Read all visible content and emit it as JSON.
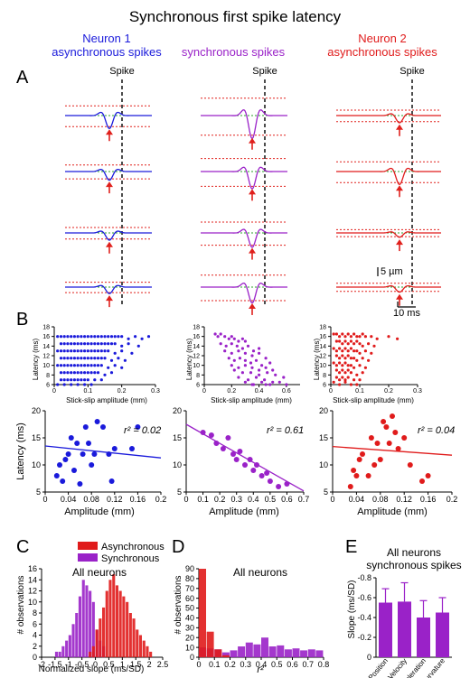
{
  "title": "Synchronous first spike latency",
  "colors": {
    "neuron1": "#1a1adb",
    "sync": "#9a22c8",
    "neuron2": "#e01b1b",
    "redline": "#e0201c",
    "greenline": "#2aa02a",
    "black": "#000000"
  },
  "panel_a": {
    "letter": "A",
    "spike_label": "Spike",
    "scale_amp": "5 µm",
    "scale_time": "10 ms",
    "columns": [
      {
        "title_line1": "Neuron 1",
        "title_line2": "asynchronous spikes",
        "color_key": "neuron1",
        "trace_amps": [
          0.9,
          0.6,
          0.5,
          0.45
        ]
      },
      {
        "title_line1": "synchronous spikes",
        "title_line2": "",
        "color_key": "sync",
        "trace_amps": [
          1.6,
          1.2,
          1.0,
          1.1
        ]
      },
      {
        "title_line1": "Neuron 2",
        "title_line2": "asynchronous spikes",
        "color_key": "neuron2",
        "trace_amps": [
          0.5,
          0.9,
          0.3,
          0.35
        ]
      }
    ]
  },
  "panel_b": {
    "letter": "B",
    "raster_xlabel": "Stick-slip amplitude (mm)",
    "raster_ylabel": "Latency (ms)",
    "scatter_xlabel": "Amplitude (mm)",
    "scatter_ylabel": "Latency (ms)"
  },
  "chart_data": [
    {
      "id": "raster-neuron1",
      "type": "scatter",
      "series_color": "neuron1",
      "xlim": [
        0,
        0.3
      ],
      "ylim": [
        6,
        18
      ],
      "xticks": [
        "0",
        "0.1",
        "0.2",
        "0.3"
      ],
      "xtick_values": [
        0,
        0.1,
        0.2,
        0.3
      ],
      "yticks": [
        "6",
        "8",
        "10",
        "12",
        "14",
        "16",
        "18"
      ],
      "ytick_values": [
        6,
        8,
        10,
        12,
        14,
        16,
        18
      ],
      "xlabel": "Stick-slip amplitude (mm)",
      "ylabel": "Latency (ms)",
      "x": [
        0.01,
        0.02,
        0.03,
        0.04,
        0.05,
        0.06,
        0.07,
        0.08,
        0.09,
        0.1,
        0.11,
        0.12,
        0.13,
        0.14,
        0.15,
        0.16,
        0.17,
        0.18,
        0.19,
        0.2,
        0.22,
        0.24,
        0.26,
        0.28,
        0.02,
        0.03,
        0.04,
        0.05,
        0.06,
        0.07,
        0.08,
        0.09,
        0.1,
        0.11,
        0.12,
        0.13,
        0.14,
        0.15,
        0.16,
        0.17,
        0.18,
        0.2,
        0.22,
        0.25,
        0.01,
        0.02,
        0.03,
        0.04,
        0.05,
        0.06,
        0.07,
        0.08,
        0.09,
        0.1,
        0.11,
        0.12,
        0.13,
        0.14,
        0.15,
        0.16,
        0.18,
        0.2,
        0.23,
        0.02,
        0.03,
        0.04,
        0.05,
        0.06,
        0.07,
        0.08,
        0.09,
        0.1,
        0.11,
        0.12,
        0.13,
        0.14,
        0.15,
        0.17,
        0.19,
        0.21,
        0.01,
        0.02,
        0.03,
        0.04,
        0.05,
        0.06,
        0.07,
        0.08,
        0.09,
        0.1,
        0.11,
        0.12,
        0.13,
        0.14,
        0.16,
        0.18,
        0.2,
        0.02,
        0.03,
        0.04,
        0.05,
        0.06,
        0.07,
        0.08,
        0.09,
        0.1,
        0.11,
        0.12,
        0.13,
        0.15,
        0.17,
        0.02,
        0.03,
        0.04,
        0.05,
        0.06,
        0.07,
        0.08,
        0.09,
        0.1,
        0.12,
        0.14,
        0.01,
        0.03,
        0.05,
        0.07,
        0.09,
        0.11
      ],
      "y": [
        16,
        16,
        16,
        16,
        16,
        16,
        16,
        16,
        16,
        16,
        16,
        16,
        16,
        16,
        16,
        16,
        16,
        16,
        16,
        16,
        15.5,
        16,
        15.5,
        16,
        14.5,
        14.5,
        14.5,
        14.5,
        14.5,
        14.5,
        14.5,
        14.5,
        14.5,
        14.5,
        14.5,
        14.5,
        14.5,
        14.5,
        14.5,
        14.5,
        14.5,
        14,
        14.5,
        14,
        13,
        13,
        13,
        13,
        13,
        13,
        13,
        13,
        13,
        13,
        13,
        13,
        13,
        13,
        13,
        13,
        12.5,
        13,
        12.5,
        11.5,
        11.5,
        11.5,
        11.5,
        11.5,
        11.5,
        11.5,
        11.5,
        11.5,
        11.5,
        11.5,
        11.5,
        11.5,
        11.5,
        11,
        11.5,
        11,
        10,
        10,
        10,
        10,
        10,
        10,
        10,
        10,
        10,
        10,
        10,
        10,
        10,
        10,
        9.5,
        10,
        9.5,
        8.5,
        8.5,
        8.5,
        8.5,
        8.5,
        8.5,
        8.5,
        8.5,
        8.5,
        8.5,
        8.5,
        8.5,
        8,
        8.5,
        7,
        7,
        7,
        7,
        7,
        7,
        7,
        7,
        7,
        7,
        7,
        6,
        6,
        6,
        6,
        6,
        6
      ]
    },
    {
      "id": "raster-sync",
      "type": "scatter",
      "series_color": "sync",
      "xlim": [
        0,
        0.7
      ],
      "ylim": [
        6,
        18
      ],
      "xticks": [
        "0",
        "0.2",
        "0.4",
        "0.6"
      ],
      "xtick_values": [
        0,
        0.2,
        0.4,
        0.6
      ],
      "yticks": [
        "6",
        "8",
        "10",
        "12",
        "14",
        "16",
        "18"
      ],
      "ytick_values": [
        6,
        8,
        10,
        12,
        14,
        16,
        18
      ],
      "xlabel": "Stick-slip amplitude (mm)",
      "ylabel": "Latency (ms)",
      "x": [
        0.08,
        0.1,
        0.12,
        0.15,
        0.18,
        0.2,
        0.22,
        0.25,
        0.28,
        0.3,
        0.12,
        0.16,
        0.2,
        0.24,
        0.28,
        0.32,
        0.36,
        0.4,
        0.15,
        0.2,
        0.25,
        0.3,
        0.35,
        0.4,
        0.45,
        0.18,
        0.22,
        0.26,
        0.3,
        0.34,
        0.38,
        0.42,
        0.48,
        0.2,
        0.25,
        0.3,
        0.35,
        0.4,
        0.45,
        0.5,
        0.22,
        0.28,
        0.34,
        0.4,
        0.46,
        0.52,
        0.58,
        0.25,
        0.32,
        0.38,
        0.44,
        0.5,
        0.3,
        0.36,
        0.42,
        0.48,
        0.55,
        0.35,
        0.45,
        0.6
      ],
      "y": [
        16.5,
        16,
        16.5,
        16,
        15.5,
        16,
        15.5,
        15,
        15.5,
        15,
        14.5,
        14,
        14.5,
        14,
        13.5,
        14,
        13,
        13.5,
        13,
        12.5,
        13,
        12.5,
        12,
        12.5,
        11.5,
        11.5,
        11,
        11.5,
        11,
        10.5,
        11,
        10,
        10.5,
        10,
        9.5,
        10,
        9.5,
        9,
        9.5,
        9,
        9,
        8.5,
        8.5,
        8,
        8.5,
        8,
        7.5,
        7.5,
        7,
        7.5,
        7,
        6.5,
        6.5,
        6,
        6.5,
        6,
        6.5,
        6,
        6,
        6
      ]
    },
    {
      "id": "raster-neuron2",
      "type": "scatter",
      "series_color": "neuron2",
      "xlim": [
        0,
        0.3
      ],
      "ylim": [
        6,
        18
      ],
      "xticks": [
        "0",
        "0.1",
        "0.2",
        "0.3"
      ],
      "xtick_values": [
        0,
        0.1,
        0.2,
        0.3
      ],
      "yticks": [
        "6",
        "8",
        "10",
        "12",
        "14",
        "16",
        "18"
      ],
      "ytick_values": [
        6,
        8,
        10,
        12,
        14,
        16,
        18
      ],
      "xlabel": "Stick-slip amplitude (mm)",
      "ylabel": "Latency (ms)",
      "x": [
        0.01,
        0.02,
        0.03,
        0.04,
        0.05,
        0.06,
        0.07,
        0.08,
        0.09,
        0.1,
        0.11,
        0.12,
        0.14,
        0.16,
        0.2,
        0.23,
        0.02,
        0.03,
        0.04,
        0.05,
        0.06,
        0.07,
        0.08,
        0.09,
        0.1,
        0.11,
        0.13,
        0.15,
        0.01,
        0.02,
        0.03,
        0.04,
        0.05,
        0.06,
        0.07,
        0.08,
        0.09,
        0.1,
        0.12,
        0.14,
        0.02,
        0.03,
        0.04,
        0.05,
        0.06,
        0.07,
        0.08,
        0.09,
        0.11,
        0.13,
        0.01,
        0.02,
        0.03,
        0.04,
        0.05,
        0.06,
        0.07,
        0.08,
        0.1,
        0.12,
        0.02,
        0.03,
        0.04,
        0.05,
        0.06,
        0.07,
        0.09,
        0.11,
        0.02,
        0.03,
        0.04,
        0.05,
        0.06,
        0.08,
        0.1,
        0.01,
        0.03,
        0.05,
        0.07,
        0.09
      ],
      "y": [
        16.5,
        16.5,
        16,
        16.5,
        16,
        16.5,
        16,
        16.5,
        16,
        16,
        16.5,
        16,
        16,
        15.5,
        16,
        15.5,
        15,
        15,
        14.5,
        15,
        14.5,
        15,
        14.5,
        15,
        14.5,
        14,
        14.5,
        14,
        13.5,
        13,
        13.5,
        13,
        13.5,
        13,
        13.5,
        13,
        13,
        12.5,
        13,
        12.5,
        12,
        11.5,
        12,
        11.5,
        12,
        11.5,
        11.5,
        11,
        11.5,
        11,
        10.5,
        10,
        10.5,
        10,
        10.5,
        10,
        10,
        9.5,
        10,
        9.5,
        9,
        8.5,
        9,
        8.5,
        9,
        8.5,
        8,
        8.5,
        7.5,
        7,
        7.5,
        7,
        7.5,
        7,
        7,
        6.5,
        6,
        6.5,
        6,
        6
      ]
    },
    {
      "id": "scatter-neuron1",
      "type": "scatter",
      "series_color": "neuron1",
      "xlim": [
        0,
        0.2
      ],
      "ylim": [
        5,
        20
      ],
      "xticks": [
        "0",
        "0.04",
        "0.08",
        "0.12",
        "0.16",
        "0.2"
      ],
      "xtick_values": [
        0,
        0.04,
        0.08,
        0.12,
        0.16,
        0.2
      ],
      "yticks": [
        "5",
        "10",
        "15",
        "20"
      ],
      "ytick_values": [
        5,
        10,
        15,
        20
      ],
      "xlabel": "Amplitude (mm)",
      "ylabel": "Latency (ms)",
      "annotation": "r² = 0.02",
      "fit": {
        "x": [
          0,
          0.2
        ],
        "y": [
          13.5,
          11.3
        ]
      },
      "x": [
        0.02,
        0.025,
        0.03,
        0.035,
        0.04,
        0.045,
        0.05,
        0.055,
        0.06,
        0.065,
        0.07,
        0.075,
        0.08,
        0.085,
        0.09,
        0.1,
        0.11,
        0.115,
        0.12,
        0.15,
        0.16
      ],
      "y": [
        8,
        10,
        7,
        11,
        12,
        15,
        9,
        14,
        6.5,
        12,
        17,
        14,
        10,
        12,
        18,
        17,
        12,
        7,
        13,
        13,
        17
      ]
    },
    {
      "id": "scatter-sync",
      "type": "scatter",
      "series_color": "sync",
      "xlim": [
        0,
        0.7
      ],
      "ylim": [
        5,
        20
      ],
      "xticks": [
        "0",
        "0.1",
        "0.2",
        "0.3",
        "0.4",
        "0.5",
        "0.6",
        "0.7"
      ],
      "xtick_values": [
        0,
        0.1,
        0.2,
        0.3,
        0.4,
        0.5,
        0.6,
        0.7
      ],
      "yticks": [
        "5",
        "10",
        "15",
        "20"
      ],
      "ytick_values": [
        5,
        10,
        15,
        20
      ],
      "xlabel": "Amplitude (mm)",
      "ylabel": "Latency (ms)",
      "annotation": "r² = 0.61",
      "fit": {
        "x": [
          0,
          0.7
        ],
        "y": [
          17.5,
          5.2
        ]
      },
      "x": [
        0.1,
        0.15,
        0.18,
        0.22,
        0.25,
        0.28,
        0.3,
        0.32,
        0.35,
        0.38,
        0.4,
        0.42,
        0.45,
        0.48,
        0.5,
        0.55,
        0.6
      ],
      "y": [
        16,
        15.5,
        14,
        13,
        15,
        12,
        11,
        12.5,
        10,
        11,
        9,
        10,
        8,
        8.5,
        7,
        6,
        6.5
      ]
    },
    {
      "id": "scatter-neuron2",
      "type": "scatter",
      "series_color": "neuron2",
      "xlim": [
        0,
        0.2
      ],
      "ylim": [
        5,
        20
      ],
      "xticks": [
        "0",
        "0.04",
        "0.08",
        "0.12",
        "0.16",
        "0.2"
      ],
      "xtick_values": [
        0,
        0.04,
        0.08,
        0.12,
        0.16,
        0.2
      ],
      "yticks": [
        "5",
        "10",
        "15",
        "20"
      ],
      "ytick_values": [
        5,
        10,
        15,
        20
      ],
      "xlabel": "Amplitude (mm)",
      "ylabel": "Latency (ms)",
      "annotation": "r² = 0.04",
      "fit": {
        "x": [
          0,
          0.2
        ],
        "y": [
          13.4,
          11.8
        ]
      },
      "x": [
        0.03,
        0.035,
        0.04,
        0.045,
        0.05,
        0.06,
        0.065,
        0.07,
        0.075,
        0.08,
        0.085,
        0.09,
        0.095,
        0.1,
        0.105,
        0.11,
        0.12,
        0.13,
        0.15,
        0.16
      ],
      "y": [
        6,
        9,
        8,
        11,
        12,
        8,
        15,
        10,
        14,
        11,
        18,
        17,
        14,
        19,
        16,
        13,
        15,
        10,
        7,
        8
      ]
    },
    {
      "id": "hist-slope",
      "type": "bar",
      "letter": "C",
      "panel_title": "All neurons",
      "xlim": [
        -2,
        2.5
      ],
      "ylim": [
        0,
        16
      ],
      "xticks": [
        "-2",
        "-1.5",
        "-1",
        "-0.5",
        "0",
        "0.5",
        "1",
        "1.5",
        "2",
        "2.5"
      ],
      "xtick_values": [
        -2,
        -1.5,
        -1,
        -0.5,
        0,
        0.5,
        1,
        1.5,
        2,
        2.5
      ],
      "yticks": [
        "0",
        "2",
        "4",
        "6",
        "8",
        "10",
        "12",
        "14",
        "16"
      ],
      "ytick_values": [
        0,
        2,
        4,
        6,
        8,
        10,
        12,
        14,
        16
      ],
      "xlabel": "Normalized slope (ms/SD)",
      "ylabel": "# observations",
      "bin_width": 0.125,
      "legend": [
        "Asynchronous",
        "Synchronous"
      ],
      "series": [
        {
          "name": "Synchronous",
          "color_key": "sync",
          "bin_start": [
            -1.5,
            -1.375,
            -1.25,
            -1.125,
            -1,
            -0.875,
            -0.75,
            -0.625,
            -0.5,
            -0.375,
            -0.25,
            -0.125,
            0,
            0.125,
            0.25
          ],
          "values": [
            1,
            1,
            2,
            3,
            4,
            6,
            8,
            11,
            14,
            13,
            12,
            10,
            5,
            3,
            2
          ]
        },
        {
          "name": "Asynchronous",
          "color_key": "neuron2",
          "bin_start": [
            -0.25,
            -0.125,
            0,
            0.125,
            0.25,
            0.375,
            0.5,
            0.625,
            0.75,
            0.875,
            1,
            1.125,
            1.25,
            1.375,
            1.5,
            1.625,
            1.75,
            1.875,
            2
          ],
          "values": [
            1,
            2,
            5,
            7,
            9,
            12,
            14,
            15,
            13,
            12,
            11,
            10,
            8,
            7,
            5,
            4,
            3,
            2,
            1
          ]
        }
      ]
    },
    {
      "id": "hist-r2",
      "type": "bar",
      "letter": "D",
      "panel_title": "All neurons",
      "xlim": [
        0,
        0.8
      ],
      "ylim": [
        0,
        90
      ],
      "xticks": [
        "0",
        "0.1",
        "0.2",
        "0.3",
        "0.4",
        "0.5",
        "0.6",
        "0.7",
        "0.8"
      ],
      "xtick_values": [
        0,
        0.1,
        0.2,
        0.3,
        0.4,
        0.5,
        0.6,
        0.7,
        0.8
      ],
      "yticks": [
        "0",
        "10",
        "20",
        "30",
        "40",
        "50",
        "60",
        "70",
        "80",
        "90"
      ],
      "ytick_values": [
        0,
        10,
        20,
        30,
        40,
        50,
        60,
        70,
        80,
        90
      ],
      "xlabel": "r²",
      "ylabel": "# observations",
      "bin_width": 0.05,
      "series": [
        {
          "name": "",
          "color_key": "sync",
          "bin_start": [
            0,
            0.05,
            0.1,
            0.15,
            0.2,
            0.25,
            0.3,
            0.35,
            0.4,
            0.45,
            0.5,
            0.55,
            0.6,
            0.65,
            0.7,
            0.75
          ],
          "values": [
            10,
            9,
            8,
            5,
            7,
            11,
            15,
            13,
            20,
            11,
            12,
            8,
            9,
            7,
            8,
            7
          ]
        },
        {
          "name": "",
          "color_key": "neuron2",
          "bin_start": [
            0,
            0.05,
            0.1,
            0.15
          ],
          "values": [
            90,
            26,
            8,
            2
          ]
        }
      ]
    },
    {
      "id": "bar-slope",
      "type": "bar",
      "letter": "E",
      "panel_title_line1": "All neurons",
      "panel_title_line2": "synchronous spikes",
      "categories": [
        "Position",
        "Velocity",
        "Acceleration",
        "Curvature"
      ],
      "values": [
        -0.55,
        -0.56,
        -0.4,
        -0.45
      ],
      "errors": [
        0.14,
        0.19,
        0.17,
        0.15
      ],
      "ylim": [
        0,
        -0.8
      ],
      "yticks": [
        "0",
        "-0.2",
        "-0.4",
        "-0.6",
        "-0.8"
      ],
      "ytick_values": [
        0,
        -0.2,
        -0.4,
        -0.6,
        -0.8
      ],
      "ylabel": "Slope (ms/SD)",
      "color_key": "sync"
    }
  ]
}
